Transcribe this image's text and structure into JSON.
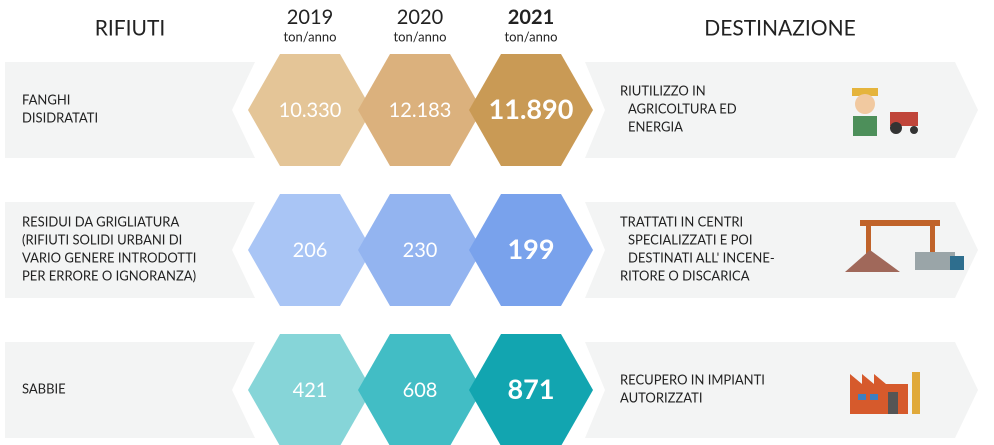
{
  "header": {
    "left_title": "RIFIUTI",
    "right_title": "DESTINAZIONE",
    "years": [
      {
        "year": "2019",
        "unit": "ton/anno"
      },
      {
        "year": "2020",
        "unit": "ton/anno"
      },
      {
        "year": "2021",
        "unit": "ton/anno"
      }
    ]
  },
  "rows": [
    {
      "waste": [
        "FANGHI",
        "DISIDRATATI"
      ],
      "values": [
        "10.330",
        "12.183",
        "11.890"
      ],
      "destination": [
        "RIUTILIZZO IN",
        "AGRICOLTURA ED",
        "ENERGIA"
      ]
    },
    {
      "waste": [
        "RESIDUI DA GRIGLIATURA",
        "(RIFIUTI SOLIDI URBANI DI",
        "VARIO GENERE INTRODOTTI",
        "PER ERRORE O IGNORANZA)"
      ],
      "values": [
        "206",
        "230",
        "199"
      ],
      "destination": [
        "TRATTATI IN CENTRI",
        "SPECIALIZZATI E POI",
        "DESTINATI ALL' INCENE-",
        "RITORE O DISCARICA"
      ]
    },
    {
      "waste": [
        "SABBIE"
      ],
      "values": [
        "421",
        "608",
        "871"
      ],
      "destination": [
        "RECUPERO IN IMPIANTI",
        "AUTORIZZATI"
      ]
    }
  ]
}
